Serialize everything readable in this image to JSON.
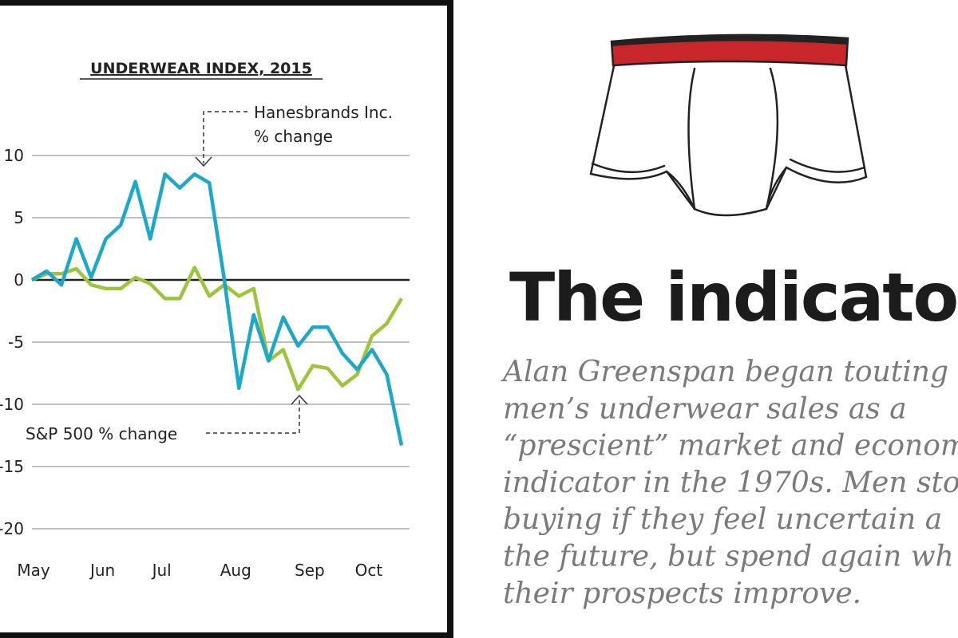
{
  "chart_data": {
    "type": "line",
    "title": "UNDERWEAR INDEX, 2015",
    "categories": [
      "May",
      null,
      null,
      null,
      null,
      "Jun",
      null,
      null,
      null,
      "Jul",
      null,
      null,
      null,
      null,
      "Aug",
      null,
      null,
      null,
      null,
      "Sep",
      null,
      null,
      null,
      "Oct",
      null,
      null
    ],
    "series": [
      {
        "name": "Hanesbrands Inc.",
        "color": "#1ba8c9",
        "values": [
          0,
          0.7,
          -0.4,
          3.3,
          0.2,
          3.3,
          4.4,
          7.9,
          3.3,
          8.5,
          7.4,
          8.5,
          7.8,
          0.1,
          -8.7,
          -2.8,
          -6.5,
          -3.0,
          -5.3,
          -3.8,
          -3.8,
          -5.9,
          -7.2,
          -5.6,
          -7.6,
          -13.3
        ]
      },
      {
        "name": "S&P 500 % change",
        "color": "#9dc43b",
        "values": [
          0,
          0.5,
          0.5,
          0.9,
          -0.4,
          -0.7,
          -0.7,
          0.2,
          -0.3,
          -1.5,
          -1.5,
          1.0,
          -1.3,
          -0.4,
          -1.3,
          -0.7,
          -6.5,
          -5.6,
          -8.8,
          -6.9,
          -7.1,
          -8.5,
          -7.6,
          -4.5,
          -3.5,
          -1.5
        ]
      }
    ],
    "annotations": [
      "% change"
    ],
    "ylim": [
      -20,
      10
    ],
    "yticks": [
      10,
      5,
      0,
      -5,
      -10,
      -15,
      -20
    ],
    "grid": true
  },
  "article": {
    "heading": "The indicator",
    "body": [
      "Alan Greenspan began touting",
      "men’s underwear sales as a",
      "“prescient” market and econom",
      "indicator in the 1970s. Men sto",
      "buying if they feel uncertain a",
      "the future, but spend again wh",
      "their prospects improve."
    ]
  }
}
